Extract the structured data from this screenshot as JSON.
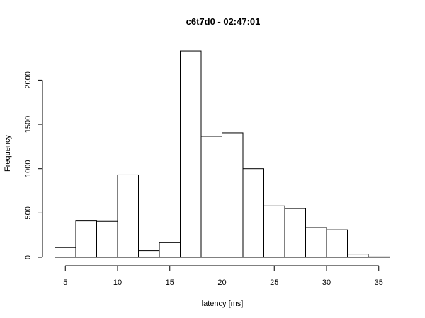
{
  "chart_data": {
    "type": "histogram",
    "title": "c6t7d0 - 02:47:01",
    "xlabel": "latency [ms]",
    "ylabel": "Frequency",
    "bin_edges": [
      4,
      6,
      8,
      10,
      12,
      14,
      16,
      18,
      20,
      22,
      24,
      26,
      28,
      30,
      32,
      34,
      36
    ],
    "values": [
      110,
      410,
      405,
      930,
      75,
      165,
      2330,
      1365,
      1405,
      1000,
      580,
      550,
      335,
      310,
      35,
      5
    ],
    "xticks": [
      5,
      10,
      15,
      20,
      25,
      30,
      35
    ],
    "yticks": [
      0,
      500,
      1000,
      1500,
      2000
    ],
    "xlim": [
      4,
      36
    ],
    "ylim": [
      0,
      2330
    ],
    "grid": false,
    "colors": {
      "bar_fill": "#ffffff",
      "bar_stroke": "#000000",
      "background": "#ffffff"
    }
  }
}
